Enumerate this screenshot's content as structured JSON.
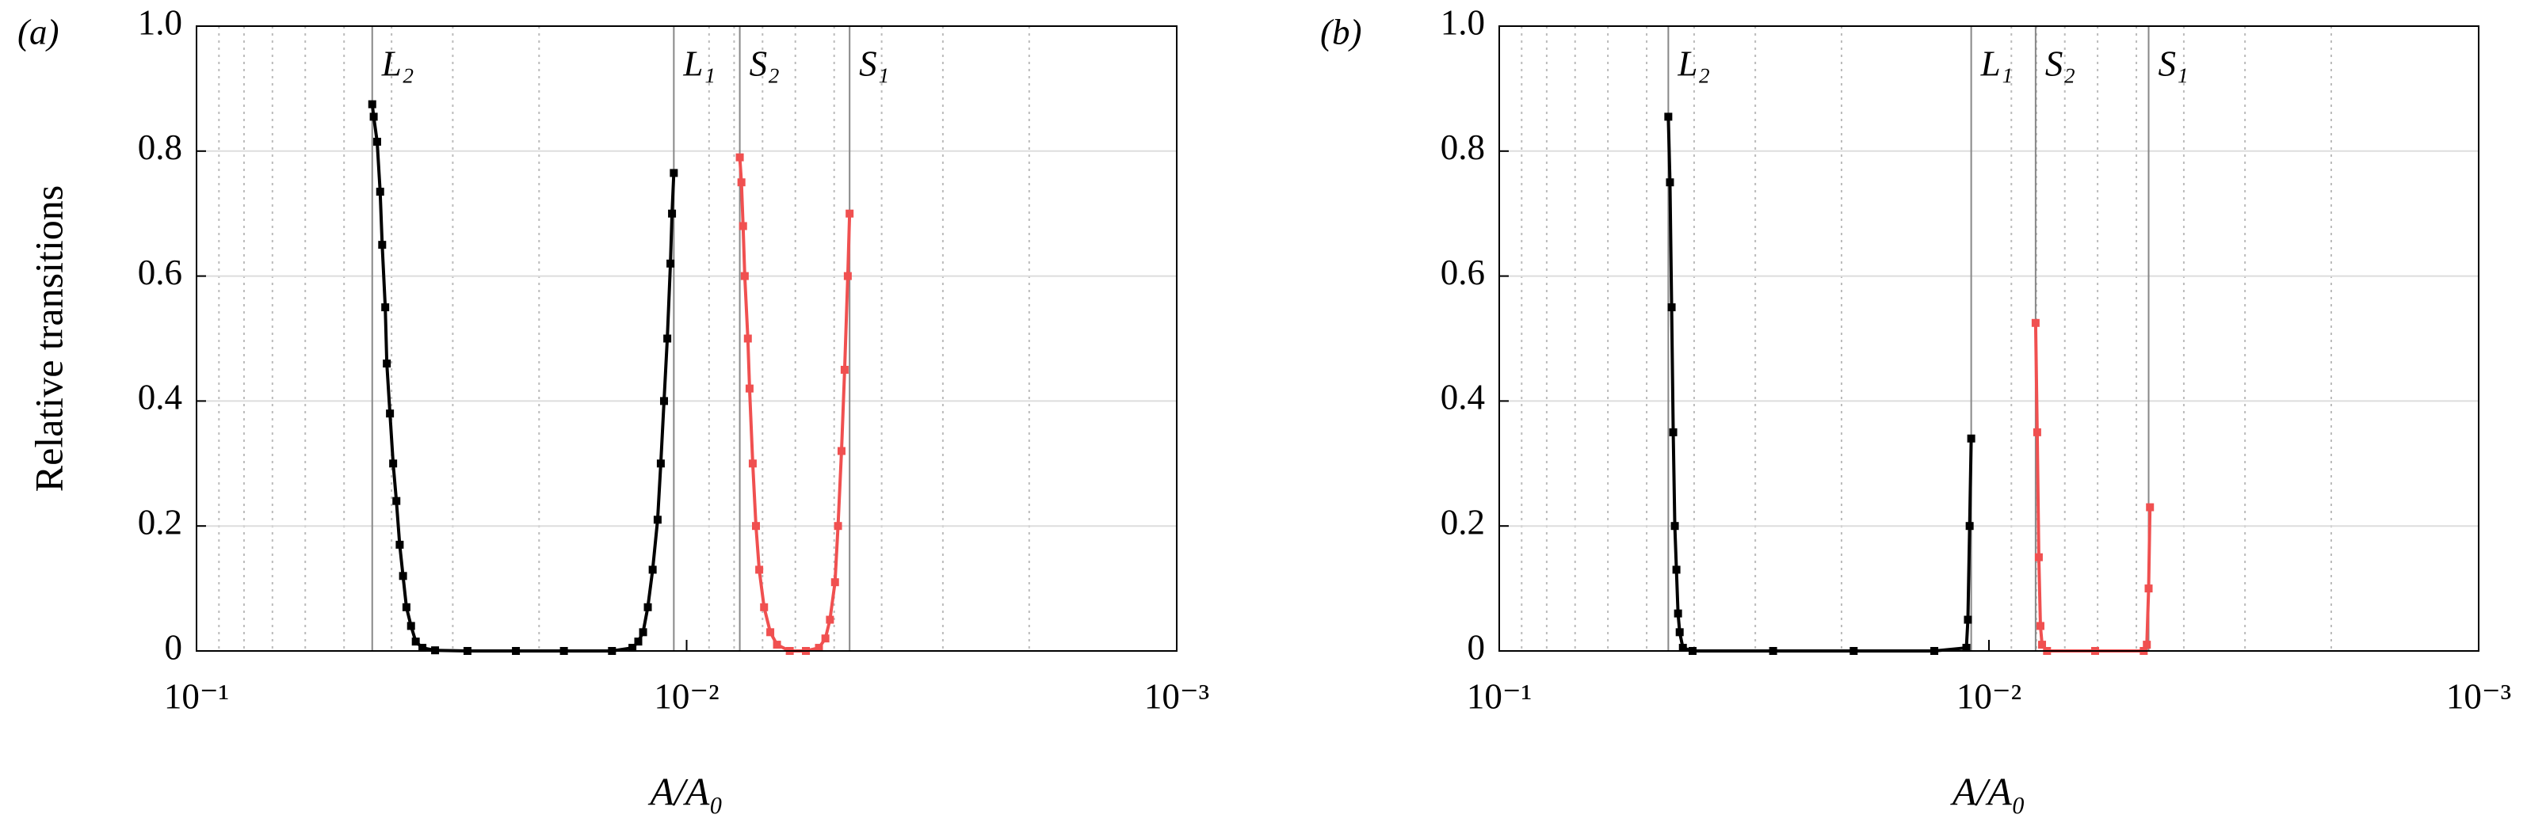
{
  "chart_data": [
    {
      "type": "line",
      "panel_label": "(a)",
      "ylabel": "Relative transitions",
      "xlabel": "A/A₀",
      "xscale": "log",
      "xlim": [
        0.1,
        0.001
      ],
      "xticks": [
        {
          "value": 0.1,
          "label": "10⁻¹"
        },
        {
          "value": 0.01,
          "label": "10⁻²"
        },
        {
          "value": 0.001,
          "label": "10⁻³"
        }
      ],
      "ylim": [
        0,
        1
      ],
      "yticks": [
        0,
        0.2,
        0.4,
        0.6,
        0.8,
        {
          "value": 1,
          "label": "1.0"
        }
      ],
      "grid": true,
      "minor_grid": true,
      "annotations": [
        {
          "text": "L₂",
          "x": 0.0438,
          "color": "#000000"
        },
        {
          "text": "L₁",
          "x": 0.01062,
          "color": "#000000"
        },
        {
          "text": "S₂",
          "x": 0.00779,
          "color": "#f05050"
        },
        {
          "text": "S₁",
          "x": 0.00465,
          "color": "#f05050"
        }
      ],
      "series": [
        {
          "color": "#000000",
          "x": [
            0.0438,
            0.0435,
            0.0428,
            0.0422,
            0.0418,
            0.0412,
            0.0409,
            0.0403,
            0.0397,
            0.0391,
            0.0385,
            0.0379,
            0.0373,
            0.0365,
            0.0357,
            0.0346,
            0.0326,
            0.028,
            0.0223,
            0.0178,
            0.0142,
            0.0129,
            0.01255,
            0.01227,
            0.012,
            0.01173,
            0.01146,
            0.01129,
            0.01112,
            0.01095,
            0.01079,
            0.01071,
            0.01062
          ],
          "values": [
            0.875,
            0.855,
            0.815,
            0.735,
            0.65,
            0.55,
            0.46,
            0.38,
            0.3,
            0.24,
            0.17,
            0.12,
            0.07,
            0.04,
            0.015,
            0.005,
            0.001,
            0,
            0,
            0,
            0,
            0.005,
            0.015,
            0.03,
            0.07,
            0.13,
            0.21,
            0.3,
            0.4,
            0.5,
            0.62,
            0.7,
            0.765
          ]
        },
        {
          "color": "#f05050",
          "x": [
            0.00779,
            0.00773,
            0.00767,
            0.00761,
            0.0075,
            0.00744,
            0.00733,
            0.00722,
            0.00711,
            0.00695,
            0.00675,
            0.00654,
            0.00616,
            0.00571,
            0.00537,
            0.00521,
            0.0051,
            0.00498,
            0.00491,
            0.00483,
            0.00476,
            0.00469,
            0.00465
          ],
          "values": [
            0.79,
            0.75,
            0.68,
            0.6,
            0.5,
            0.42,
            0.3,
            0.2,
            0.13,
            0.07,
            0.03,
            0.01,
            0,
            0,
            0.005,
            0.02,
            0.05,
            0.11,
            0.2,
            0.32,
            0.45,
            0.6,
            0.7
          ]
        }
      ]
    },
    {
      "type": "line",
      "panel_label": "(b)",
      "xlabel": "A/A₀",
      "xscale": "log",
      "xlim": [
        0.1,
        0.001
      ],
      "xticks": [
        {
          "value": 0.1,
          "label": "10⁻¹"
        },
        {
          "value": 0.01,
          "label": "10⁻²"
        },
        {
          "value": 0.001,
          "label": "10⁻³"
        }
      ],
      "ylim": [
        0,
        1
      ],
      "yticks": [
        0,
        0.2,
        0.4,
        0.6,
        0.8,
        {
          "value": 1,
          "label": "1.0"
        }
      ],
      "grid": true,
      "minor_grid": true,
      "annotations": [
        {
          "text": "L₂",
          "x": 0.04516,
          "color": "#000000"
        },
        {
          "text": "L₁",
          "x": 0.01087,
          "color": "#000000"
        },
        {
          "text": "S₂",
          "x": 0.00803,
          "color": "#f05050"
        },
        {
          "text": "S₁",
          "x": 0.00472,
          "color": "#f05050"
        }
      ],
      "series": [
        {
          "color": "#000000",
          "x": [
            0.04516,
            0.04481,
            0.04446,
            0.04413,
            0.0438,
            0.04347,
            0.04314,
            0.04281,
            0.04217,
            0.04029,
            0.02759,
            0.01889,
            0.01293,
            0.01112,
            0.01104,
            0.01095,
            0.01087
          ],
          "values": [
            0.855,
            0.75,
            0.55,
            0.35,
            0.2,
            0.13,
            0.06,
            0.03,
            0.005,
            0,
            0,
            0,
            0,
            0.005,
            0.05,
            0.2,
            0.34
          ]
        },
        {
          "color": "#f05050",
          "x": [
            0.00803,
            0.00797,
            0.00791,
            0.00785,
            0.00779,
            0.00761,
            0.00607,
            0.00483,
            0.00476,
            0.00472,
            0.00469
          ],
          "values": [
            0.525,
            0.35,
            0.15,
            0.04,
            0.01,
            0,
            0,
            0,
            0.01,
            0.1,
            0.23
          ]
        }
      ]
    }
  ]
}
